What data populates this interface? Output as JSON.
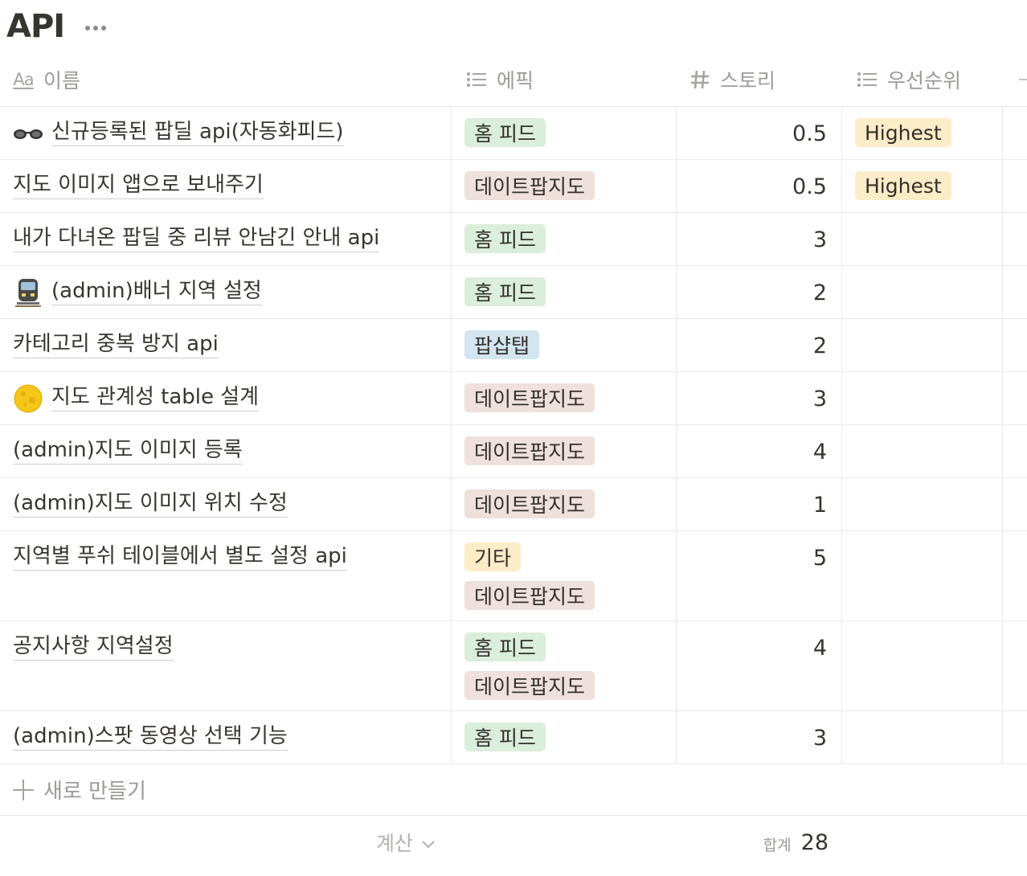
{
  "page": {
    "title": "API"
  },
  "columns": {
    "name": "이름",
    "name_icon_text": "Aa",
    "epic": "에픽",
    "story": "스토리",
    "priority": "우선순위"
  },
  "rows": [
    {
      "icon": "glasses-icon",
      "name": "신규등록된 팝딜 api(자동화피드)",
      "epics": [
        "홈 피드"
      ],
      "story": "0.5",
      "priority": "Highest"
    },
    {
      "icon": "",
      "name": "지도 이미지 앱으로 보내주기",
      "epics": [
        "데이트팝지도"
      ],
      "story": "0.5",
      "priority": "Highest"
    },
    {
      "icon": "",
      "name": "내가 다녀온 팝딜 중 리뷰 안남긴 안내 api",
      "epics": [
        "홈 피드"
      ],
      "story": "3",
      "priority": ""
    },
    {
      "icon": "train-icon",
      "name": "(admin)배너 지역 설정",
      "epics": [
        "홈 피드"
      ],
      "story": "2",
      "priority": ""
    },
    {
      "icon": "",
      "name": "카테고리 중복 방지 api",
      "epics": [
        "팝샵탭"
      ],
      "story": "2",
      "priority": ""
    },
    {
      "icon": "moon-icon",
      "name": "지도 관계성 table 설계",
      "epics": [
        "데이트팝지도"
      ],
      "story": "3",
      "priority": ""
    },
    {
      "icon": "",
      "name": "(admin)지도 이미지 등록",
      "epics": [
        "데이트팝지도"
      ],
      "story": "4",
      "priority": ""
    },
    {
      "icon": "",
      "name": "(admin)지도 이미지 위치 수정",
      "epics": [
        "데이트팝지도"
      ],
      "story": "1",
      "priority": ""
    },
    {
      "icon": "",
      "name": "지역별 푸쉬 테이블에서 별도 설정 api",
      "epics": [
        "기타",
        "데이트팝지도"
      ],
      "story": "5",
      "priority": ""
    },
    {
      "icon": "",
      "name": "공지사항 지역설정",
      "epics": [
        "홈 피드",
        "데이트팝지도"
      ],
      "story": "4",
      "priority": ""
    },
    {
      "icon": "",
      "name": "(admin)스팟 동영상 선택 기능",
      "epics": [
        "홈 피드"
      ],
      "story": "3",
      "priority": ""
    }
  ],
  "epic_colors": {
    "홈 피드": "#dbeddb",
    "데이트팝지도": "#eee0da",
    "팝샵탭": "#d3e5ef",
    "기타": "#fdecc8"
  },
  "priority_color": "#fdecc8",
  "new_row": {
    "label": "새로 만들기"
  },
  "footer": {
    "calc_label": "계산",
    "sum_label": "합계",
    "sum_value": "28"
  }
}
